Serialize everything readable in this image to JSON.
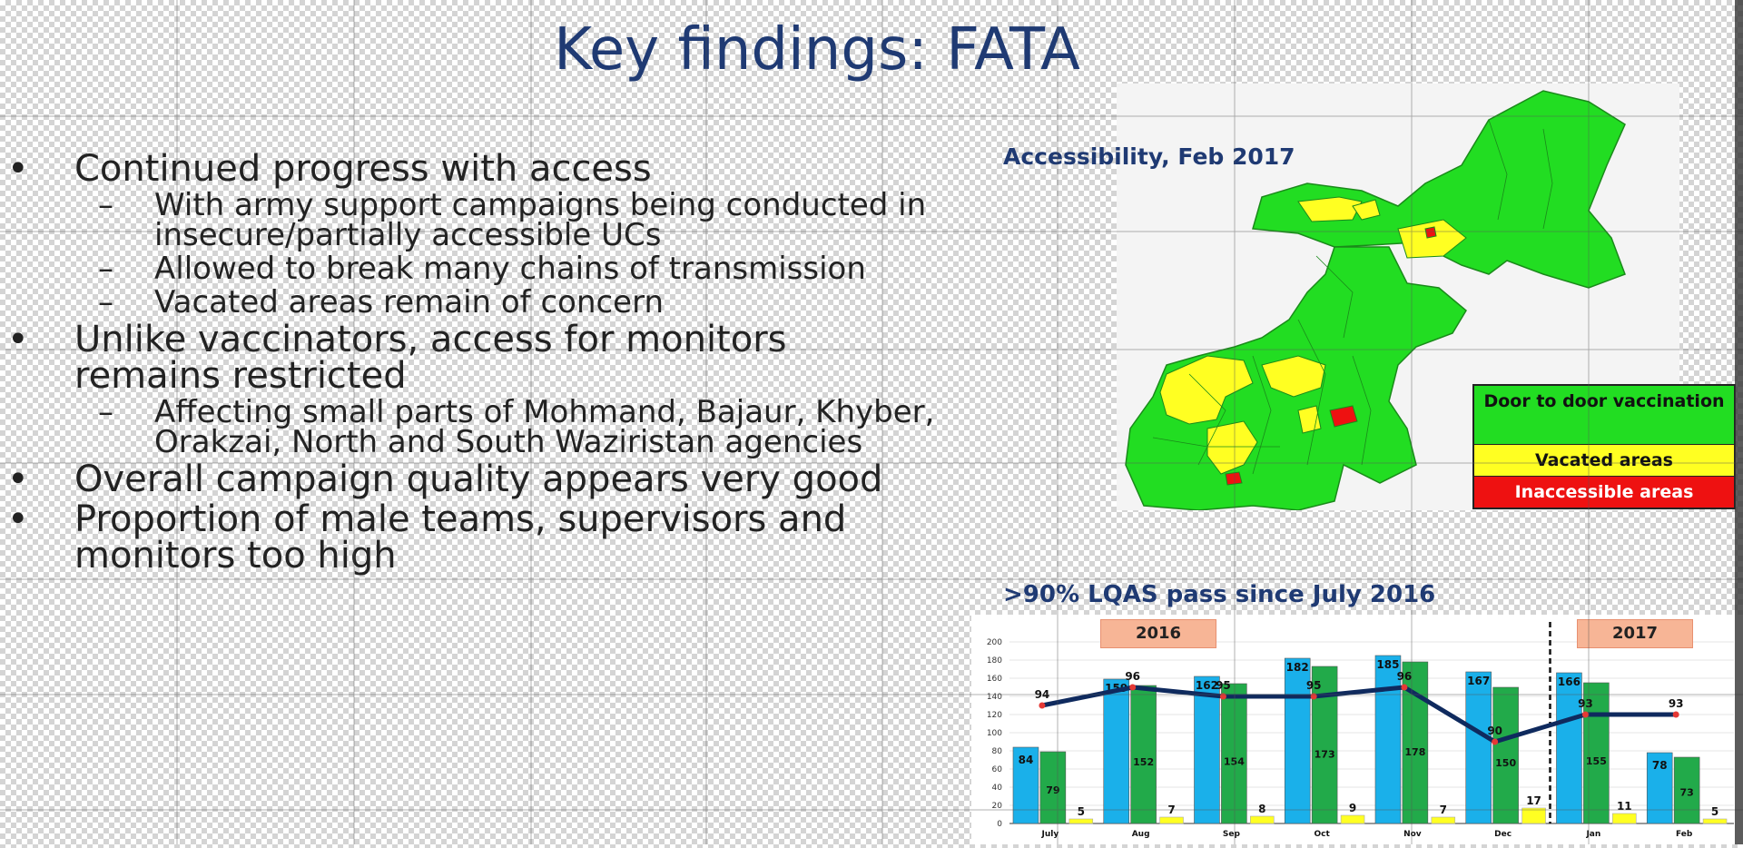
{
  "title": "Key findings: FATA",
  "bullets": [
    {
      "text": "Continued progress with access",
      "subs": [
        "With army support campaigns being conducted in insecure/partially accessible UCs",
        "Allowed to break many chains of transmission",
        "Vacated areas remain of concern"
      ]
    },
    {
      "text": "Unlike vaccinators, access for monitors remains restricted",
      "subs": [
        "Affecting small parts of Mohmand, Bajaur, Khyber, Orakzai, North and South Waziristan agencies"
      ]
    },
    {
      "text": "Overall campaign quality appears very good",
      "subs": []
    },
    {
      "text": "Proportion of male teams, supervisors and monitors too high",
      "subs": []
    }
  ],
  "bullet_symbol": "•",
  "sub_symbol": "–",
  "map": {
    "title": "Accessibility, Feb 2017",
    "legend": {
      "door": "Door to door vaccination",
      "vacated": "Vacated areas",
      "inaccessible": "Inaccessible areas"
    },
    "colors": {
      "green": "#22dd22",
      "yellow": "#ffff22",
      "red": "#ee1111"
    }
  },
  "chart_title": ">90% LQAS pass since July 2016",
  "year_badges": {
    "y2016": "2016",
    "y2017": "2017"
  },
  "chart_data": {
    "type": "bar",
    "categories": [
      "July",
      "Aug",
      "Sep",
      "Oct",
      "Nov",
      "Dec",
      "Jan",
      "Feb"
    ],
    "series": [
      {
        "values": [
          84,
          159,
          162,
          182,
          185,
          167,
          166,
          78
        ],
        "color": "#1ab0ea"
      },
      {
        "values": [
          79,
          152,
          154,
          173,
          178,
          150,
          155,
          73
        ],
        "color": "#22aa4a"
      },
      {
        "values": [
          5,
          7,
          8,
          9,
          7,
          17,
          11,
          5
        ],
        "color": "#ffff22"
      }
    ],
    "line": {
      "values": [
        94,
        96,
        95,
        95,
        96,
        90,
        93,
        93
      ],
      "labels": [
        "94",
        "96",
        "95",
        "95",
        "96",
        "90",
        "93",
        "93"
      ],
      "color": "#0f2a5e"
    },
    "green_labels": [
      "79",
      "152",
      "154",
      "173",
      "178",
      "150",
      "155",
      "73"
    ],
    "ylim": [
      0,
      200
    ],
    "yticks": [
      0,
      20,
      40,
      60,
      80,
      100,
      120,
      140,
      160,
      180,
      200
    ]
  }
}
